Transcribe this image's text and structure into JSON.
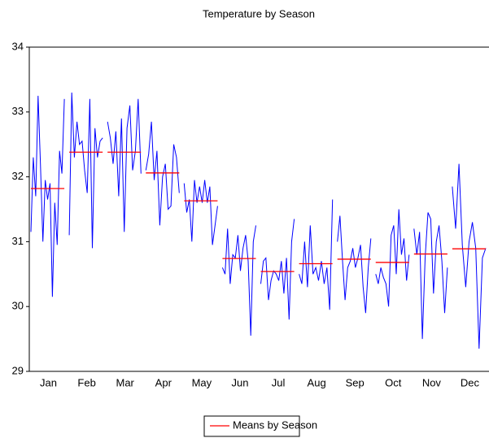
{
  "chart_data": {
    "type": "seasonal",
    "title": "Temperature by Season",
    "categories": [
      "Jan",
      "Feb",
      "Mar",
      "Apr",
      "May",
      "Jun",
      "Jul",
      "Aug",
      "Sep",
      "Oct",
      "Nov",
      "Dec"
    ],
    "ylim": [
      29,
      34
    ],
    "yticks": [
      29,
      30,
      31,
      32,
      33,
      34
    ],
    "series": [
      {
        "name": "Means by Season",
        "color": "#ff0000",
        "values": [
          31.82,
          32.38,
          32.38,
          32.06,
          31.63,
          30.74,
          30.54,
          30.66,
          30.73,
          30.68,
          30.81,
          30.89
        ]
      }
    ],
    "subseries": {
      "color": "#0000ff",
      "values": [
        [
          31.15,
          32.3,
          31.7,
          33.25,
          32.2,
          31.0,
          31.95,
          31.65,
          31.9,
          30.15,
          31.6,
          30.95,
          32.4,
          32.05,
          33.2
        ],
        [
          31.1,
          33.3,
          32.3,
          32.85,
          32.5,
          32.55,
          32.1,
          31.75,
          33.2,
          30.9,
          32.75,
          32.3,
          32.55,
          32.6
        ],
        [
          32.85,
          32.6,
          32.2,
          32.7,
          31.7,
          32.9,
          31.15,
          32.75,
          33.1,
          32.1,
          32.4,
          33.2,
          32.05
        ],
        [
          32.1,
          32.35,
          32.85,
          31.95,
          32.4,
          31.25,
          32.0,
          32.2,
          31.5,
          31.55,
          32.5,
          32.3,
          31.75
        ],
        [
          31.9,
          31.45,
          31.65,
          31.0,
          31.95,
          31.6,
          31.85,
          31.6,
          31.95,
          31.6,
          31.85,
          30.95,
          31.25,
          31.55
        ],
        [
          30.6,
          30.5,
          31.2,
          30.35,
          30.8,
          30.75,
          31.1,
          30.55,
          30.9,
          31.1,
          30.7,
          29.55,
          31.0,
          31.25
        ],
        [
          30.35,
          30.7,
          30.75,
          30.1,
          30.4,
          30.55,
          30.5,
          30.4,
          30.7,
          30.2,
          30.75,
          29.8,
          31.0,
          31.35
        ],
        [
          30.5,
          30.35,
          31.0,
          30.3,
          31.25,
          30.5,
          30.6,
          30.4,
          30.7,
          30.35,
          30.6,
          29.95,
          31.65
        ],
        [
          31.0,
          31.4,
          30.7,
          30.1,
          30.6,
          30.7,
          30.9,
          30.6,
          30.75,
          30.95,
          30.3,
          29.9,
          30.6,
          31.05
        ],
        [
          30.5,
          30.35,
          30.6,
          30.45,
          30.35,
          30.0,
          31.1,
          31.25,
          30.5,
          31.5,
          30.8,
          31.05,
          30.4,
          30.8
        ],
        [
          31.2,
          30.8,
          31.15,
          29.5,
          30.75,
          31.45,
          31.35,
          30.2,
          31.0,
          31.25,
          30.7,
          29.9,
          30.6
        ],
        [
          31.85,
          31.2,
          32.2,
          30.95,
          30.3,
          31.0,
          31.3,
          30.9,
          29.35,
          30.75,
          30.9
        ]
      ]
    }
  }
}
